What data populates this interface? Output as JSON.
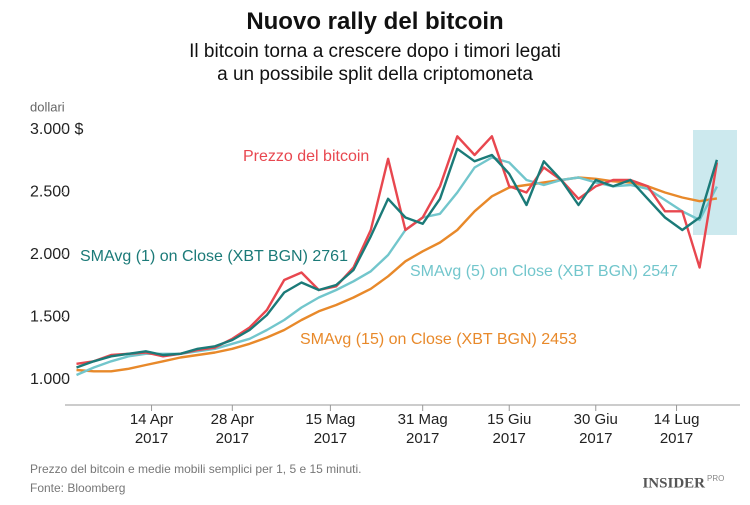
{
  "chart_data": {
    "type": "line",
    "title": "Nuovo rally del bitcoin",
    "subtitle": "Il bitcoin torna a crescere dopo i timori legati a un possibile split della criptomoneta",
    "y_label": "dollari",
    "footnote": "Prezzo del bitcoin e medie mobili semplici per 1, 5 e 15 minuti.",
    "source": "Fonte: Bloomberg",
    "logo": "INSIDER",
    "logo_sub": "PRO",
    "x": [
      "2017-04-01",
      "2017-04-04",
      "2017-04-07",
      "2017-04-10",
      "2017-04-13",
      "2017-04-16",
      "2017-04-19",
      "2017-04-22",
      "2017-04-25",
      "2017-04-28",
      "2017-05-01",
      "2017-05-04",
      "2017-05-07",
      "2017-05-10",
      "2017-05-13",
      "2017-05-16",
      "2017-05-19",
      "2017-05-22",
      "2017-05-25",
      "2017-05-28",
      "2017-05-31",
      "2017-06-03",
      "2017-06-06",
      "2017-06-09",
      "2017-06-12",
      "2017-06-15",
      "2017-06-18",
      "2017-06-21",
      "2017-06-24",
      "2017-06-27",
      "2017-06-30",
      "2017-07-03",
      "2017-07-06",
      "2017-07-09",
      "2017-07-12",
      "2017-07-15",
      "2017-07-18",
      "2017-07-21"
    ],
    "series": [
      {
        "name": "Prezzo del bitcoin",
        "color": "#e8474f",
        "values": [
          1130,
          1150,
          1200,
          1210,
          1220,
          1190,
          1210,
          1240,
          1260,
          1330,
          1420,
          1560,
          1800,
          1860,
          1720,
          1750,
          1900,
          2200,
          2770,
          2200,
          2300,
          2550,
          2950,
          2800,
          2950,
          2550,
          2500,
          2700,
          2600,
          2450,
          2550,
          2600,
          2600,
          2550,
          2350,
          2350,
          1900,
          2740
        ]
      },
      {
        "name": "SMAvg (1) on Close (XBT BGN) 2761",
        "color": "#1b7a78",
        "values": [
          1100,
          1150,
          1190,
          1210,
          1230,
          1200,
          1210,
          1250,
          1270,
          1320,
          1400,
          1520,
          1700,
          1780,
          1720,
          1760,
          1880,
          2150,
          2450,
          2300,
          2250,
          2450,
          2850,
          2750,
          2800,
          2650,
          2400,
          2750,
          2600,
          2400,
          2600,
          2550,
          2600,
          2450,
          2300,
          2200,
          2300,
          2761
        ]
      },
      {
        "name": "SMAvg (5) on Close (XBT BGN) 2547",
        "color": "#72c6cc",
        "values": [
          1040,
          1100,
          1150,
          1190,
          1210,
          1210,
          1210,
          1230,
          1250,
          1290,
          1330,
          1400,
          1480,
          1580,
          1660,
          1720,
          1790,
          1870,
          2000,
          2200,
          2300,
          2330,
          2500,
          2700,
          2780,
          2740,
          2600,
          2560,
          2600,
          2620,
          2580,
          2550,
          2560,
          2530,
          2440,
          2350,
          2280,
          2547
        ]
      },
      {
        "name": "SMAvg (15) on Close (XBT BGN) 2453",
        "color": "#e8892a",
        "values": [
          1080,
          1070,
          1070,
          1090,
          1120,
          1150,
          1180,
          1200,
          1220,
          1250,
          1290,
          1340,
          1400,
          1480,
          1550,
          1600,
          1660,
          1730,
          1830,
          1950,
          2030,
          2100,
          2200,
          2350,
          2470,
          2540,
          2560,
          2580,
          2600,
          2620,
          2610,
          2590,
          2580,
          2550,
          2500,
          2460,
          2430,
          2453
        ]
      }
    ],
    "xlim": [
      "2017-03-30",
      "2017-07-25"
    ],
    "xticks": [
      {
        "value": "2017-04-14",
        "label": "14 Apr 2017"
      },
      {
        "value": "2017-04-28",
        "label": "28 Apr 2017"
      },
      {
        "value": "2017-05-15",
        "label": "15 Mag 2017"
      },
      {
        "value": "2017-05-31",
        "label": "31 Mag 2017"
      },
      {
        "value": "2017-06-15",
        "label": "15 Giu 2017"
      },
      {
        "value": "2017-06-30",
        "label": "30 Giu 2017"
      },
      {
        "value": "2017-07-14",
        "label": "14 Lug 2017"
      }
    ],
    "ylim": [
      800,
      3000
    ],
    "yticks": [
      {
        "value": 1000,
        "label": "1.000"
      },
      {
        "value": 1500,
        "label": "1.500"
      },
      {
        "value": 2000,
        "label": "2.000"
      },
      {
        "value": 2500,
        "label": "2.500"
      },
      {
        "value": 3000,
        "label": "3.000 $"
      }
    ],
    "grid": false
  }
}
